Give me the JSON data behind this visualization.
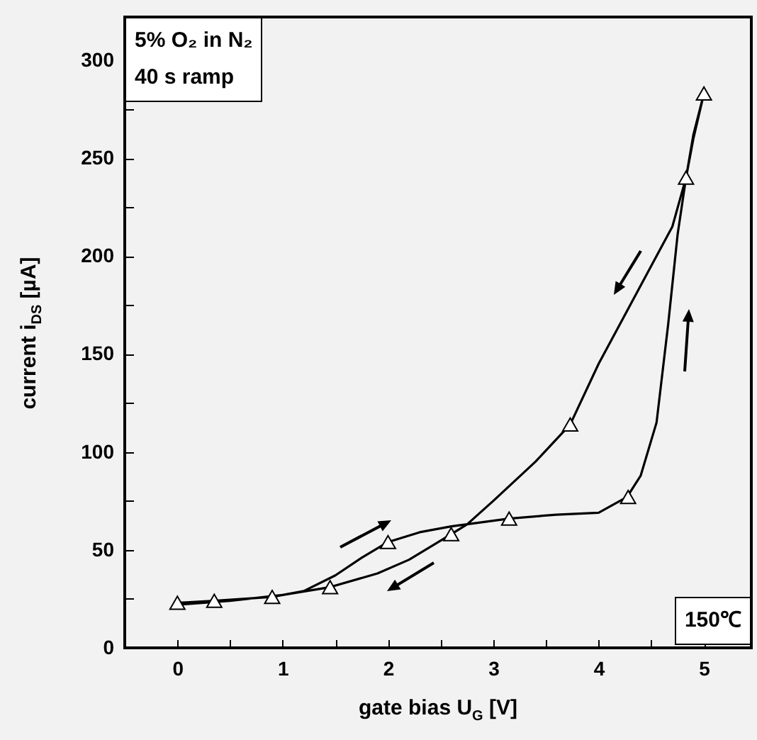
{
  "chart_data": {
    "type": "line",
    "xlabel": "gate bias U$_{G}$ [V]",
    "ylabel": "current i$_{DS}$ [µA]",
    "annotations": [
      "5% O₂ in N₂",
      "40 s ramp",
      "150℃"
    ],
    "xlim": [
      -0.5,
      5.45
    ],
    "ylim": [
      0,
      322
    ],
    "xticks": [
      0,
      {
        "value": 0.5,
        "label": null
      },
      1,
      {
        "value": 1.5,
        "label": null
      },
      2,
      {
        "value": 2.5,
        "label": null
      },
      3,
      {
        "value": 3.5,
        "label": null
      },
      4,
      {
        "value": 4.5,
        "label": null
      },
      5
    ],
    "yticks": [
      0,
      {
        "value": 25,
        "label": null
      },
      50,
      {
        "value": 75,
        "label": null
      },
      100,
      {
        "value": 125,
        "label": null
      },
      150,
      {
        "value": 175,
        "label": null
      },
      200,
      {
        "value": 225,
        "label": null
      },
      250,
      {
        "value": 275,
        "label": null
      },
      300
    ],
    "grid": false,
    "legend": false,
    "series": [
      {
        "color": "#000000",
        "x": [
          0,
          0.35,
          0.9,
          1.2,
          1.5,
          1.75,
          2.0,
          2.3,
          2.6,
          3.15,
          3.6,
          4.0,
          4.27,
          4.4,
          4.55,
          4.66,
          4.75,
          4.83,
          4.9,
          5,
          4.9,
          4.83,
          4.7,
          4.5,
          4.2,
          4.0,
          3.73,
          3.4,
          3.0,
          2.75,
          2.6,
          2.2,
          1.9,
          1.45,
          1.0,
          0.5,
          0
        ],
        "values": [
          23,
          24,
          26,
          29,
          37,
          46,
          54,
          59,
          62,
          66,
          68,
          69,
          77,
          88,
          115,
          165,
          211,
          240,
          260,
          283,
          262,
          240,
          215,
          195,
          165,
          145,
          114,
          95,
          75,
          63,
          58,
          45,
          38,
          31,
          27,
          24,
          22
        ]
      },
      {
        "type": "scatter",
        "color": "#ffffff",
        "marker": "triangle",
        "x": [
          0,
          0.35,
          0.9,
          1.45,
          2.0,
          2.6,
          3.15,
          3.73,
          4.28,
          4.83,
          5
        ],
        "values": [
          23,
          24,
          26,
          31,
          54,
          58,
          66,
          114,
          77,
          240,
          283
        ]
      }
    ]
  }
}
